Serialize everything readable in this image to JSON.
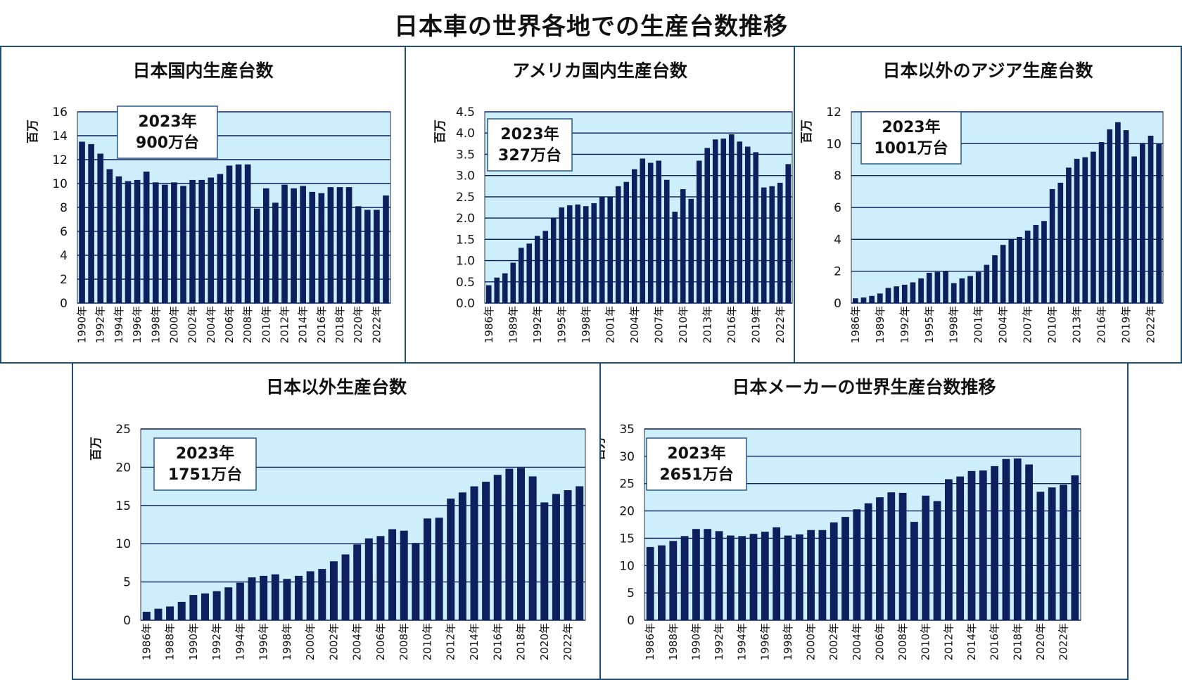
{
  "title": "日本車の世界各地での生産台数推移",
  "colors": {
    "bar": "#0d1f5c",
    "plot_bg": "#cdeefb",
    "grid": "#0d1f5c",
    "border": "#1f4e79"
  },
  "chart_data": [
    {
      "type": "bar",
      "title": "日本国内生産台数",
      "ylabel": "百万",
      "ylim": [
        0,
        16
      ],
      "yticks": [
        "0",
        "2",
        "4",
        "6",
        "8",
        "10",
        "12",
        "14",
        "16"
      ],
      "annotation": [
        "2023年",
        "900万台"
      ],
      "x": [
        1990,
        1991,
        1992,
        1993,
        1994,
        1995,
        1996,
        1997,
        1998,
        1999,
        2000,
        2001,
        2002,
        2003,
        2004,
        2005,
        2006,
        2007,
        2008,
        2009,
        2010,
        2011,
        2012,
        2013,
        2014,
        2015,
        2016,
        2017,
        2018,
        2019,
        2020,
        2021,
        2022,
        2023
      ],
      "x_tick_labels": [
        "1990年",
        "1992年",
        "1994年",
        "1996年",
        "1998年",
        "2000年",
        "2002年",
        "2004年",
        "2006年",
        "2008年",
        "2010年",
        "2012年",
        "2014年",
        "2016年",
        "2018年",
        "2020年",
        "2022年"
      ],
      "values": [
        13.5,
        13.3,
        12.5,
        11.2,
        10.6,
        10.2,
        10.3,
        11.0,
        10.1,
        9.9,
        10.1,
        9.8,
        10.3,
        10.3,
        10.5,
        10.8,
        11.5,
        11.6,
        11.6,
        7.9,
        9.6,
        8.4,
        9.9,
        9.6,
        9.8,
        9.3,
        9.2,
        9.7,
        9.7,
        9.7,
        8.1,
        7.8,
        7.8,
        9.0
      ]
    },
    {
      "type": "bar",
      "title": "アメリカ国内生産台数",
      "ylabel": "百万",
      "ylim": [
        0,
        4.5
      ],
      "yticks": [
        "0.0",
        "0.5",
        "1.0",
        "1.5",
        "2.0",
        "2.5",
        "3.0",
        "3.5",
        "4.0",
        "4.5"
      ],
      "annotation": [
        "2023年",
        "327万台"
      ],
      "x": [
        1986,
        1987,
        1988,
        1989,
        1990,
        1991,
        1992,
        1993,
        1994,
        1995,
        1996,
        1997,
        1998,
        1999,
        2000,
        2001,
        2002,
        2003,
        2004,
        2005,
        2006,
        2007,
        2008,
        2009,
        2010,
        2011,
        2012,
        2013,
        2014,
        2015,
        2016,
        2017,
        2018,
        2019,
        2020,
        2021,
        2022,
        2023
      ],
      "x_tick_labels": [
        "1986年",
        "1989年",
        "1992年",
        "1995年",
        "1998年",
        "2001年",
        "2004年",
        "2007年",
        "2010年",
        "2013年",
        "2016年",
        "2019年",
        "2022年"
      ],
      "values": [
        0.42,
        0.6,
        0.7,
        0.95,
        1.3,
        1.4,
        1.58,
        1.7,
        2.0,
        2.25,
        2.3,
        2.32,
        2.28,
        2.35,
        2.5,
        2.5,
        2.75,
        2.85,
        3.15,
        3.4,
        3.3,
        3.35,
        2.9,
        2.15,
        2.68,
        2.45,
        3.35,
        3.65,
        3.85,
        3.87,
        3.97,
        3.8,
        3.68,
        3.55,
        2.72,
        2.75,
        2.83,
        3.27
      ]
    },
    {
      "type": "bar",
      "title": "日本以外のアジア生産台数",
      "ylabel": "百万",
      "ylim": [
        0,
        12
      ],
      "yticks": [
        "0",
        "2",
        "4",
        "6",
        "8",
        "10",
        "12"
      ],
      "annotation": [
        "2023年",
        "1001万台"
      ],
      "x": [
        1986,
        1987,
        1988,
        1989,
        1990,
        1991,
        1992,
        1993,
        1994,
        1995,
        1996,
        1997,
        1998,
        1999,
        2000,
        2001,
        2002,
        2003,
        2004,
        2005,
        2006,
        2007,
        2008,
        2009,
        2010,
        2011,
        2012,
        2013,
        2014,
        2015,
        2016,
        2017,
        2018,
        2019,
        2020,
        2021,
        2022,
        2023
      ],
      "x_tick_labels": [
        "1986年",
        "1989年",
        "1992年",
        "1995年",
        "1998年",
        "2001年",
        "2004年",
        "2007年",
        "2010年",
        "2013年",
        "2016年",
        "2019年",
        "2022年"
      ],
      "values": [
        0.3,
        0.35,
        0.45,
        0.6,
        0.95,
        1.05,
        1.15,
        1.3,
        1.55,
        1.9,
        1.95,
        2.0,
        1.25,
        1.55,
        1.7,
        1.95,
        2.4,
        3.0,
        3.65,
        4.0,
        4.15,
        4.55,
        4.9,
        5.15,
        7.15,
        7.55,
        8.5,
        9.05,
        9.15,
        9.5,
        10.1,
        10.9,
        11.35,
        10.85,
        9.2,
        10.05,
        10.5,
        10.01
      ]
    },
    {
      "type": "bar",
      "title": "日本以外生産台数",
      "ylabel": "百万",
      "ylim": [
        0,
        25
      ],
      "yticks": [
        "0",
        "5",
        "10",
        "15",
        "20",
        "25"
      ],
      "annotation": [
        "2023年",
        "1751万台"
      ],
      "x": [
        1986,
        1987,
        1988,
        1989,
        1990,
        1991,
        1992,
        1993,
        1994,
        1995,
        1996,
        1997,
        1998,
        1999,
        2000,
        2001,
        2002,
        2003,
        2004,
        2005,
        2006,
        2007,
        2008,
        2009,
        2010,
        2011,
        2012,
        2013,
        2014,
        2015,
        2016,
        2017,
        2018,
        2019,
        2020,
        2021,
        2022,
        2023
      ],
      "x_tick_labels": [
        "1986年",
        "1988年",
        "1990年",
        "1992年",
        "1994年",
        "1996年",
        "1998年",
        "2000年",
        "2002年",
        "2004年",
        "2006年",
        "2008年",
        "2010年",
        "2012年",
        "2014年",
        "2016年",
        "2018年",
        "2020年",
        "2022年"
      ],
      "values": [
        1.1,
        1.5,
        1.8,
        2.4,
        3.3,
        3.5,
        3.8,
        4.3,
        4.9,
        5.6,
        5.8,
        6.0,
        5.4,
        5.8,
        6.4,
        6.7,
        7.7,
        8.6,
        9.9,
        10.7,
        11.0,
        11.9,
        11.7,
        10.1,
        13.3,
        13.4,
        15.9,
        16.7,
        17.5,
        18.1,
        19.0,
        19.8,
        19.9,
        18.8,
        15.4,
        16.5,
        17.0,
        17.51
      ]
    },
    {
      "type": "bar",
      "title": "日本メーカーの世界生産台数推移",
      "ylabel": "百万",
      "ylim": [
        0,
        35
      ],
      "yticks": [
        "0",
        "5",
        "10",
        "15",
        "20",
        "25",
        "30",
        "35"
      ],
      "annotation": [
        "2023年",
        "2651万台"
      ],
      "x": [
        1986,
        1987,
        1988,
        1989,
        1990,
        1991,
        1992,
        1993,
        1994,
        1995,
        1996,
        1997,
        1998,
        1999,
        2000,
        2001,
        2002,
        2003,
        2004,
        2005,
        2006,
        2007,
        2008,
        2009,
        2010,
        2011,
        2012,
        2013,
        2014,
        2015,
        2016,
        2017,
        2018,
        2019,
        2020,
        2021,
        2022,
        2023
      ],
      "x_tick_labels": [
        "1986年",
        "1988年",
        "1990年",
        "1992年",
        "1994年",
        "1996年",
        "1998年",
        "2000年",
        "2002年",
        "2004年",
        "2006年",
        "2008年",
        "2010年",
        "2012年",
        "2014年",
        "2016年",
        "2018年",
        "2020年",
        "2022年"
      ],
      "values": [
        13.4,
        13.7,
        14.5,
        15.4,
        16.7,
        16.7,
        16.3,
        15.5,
        15.4,
        15.8,
        16.2,
        17.0,
        15.5,
        15.7,
        16.5,
        16.5,
        17.9,
        18.9,
        20.3,
        21.4,
        22.5,
        23.4,
        23.3,
        18.0,
        22.8,
        21.8,
        25.8,
        26.3,
        27.3,
        27.4,
        28.2,
        29.5,
        29.6,
        28.5,
        23.5,
        24.3,
        24.8,
        26.51
      ]
    }
  ]
}
